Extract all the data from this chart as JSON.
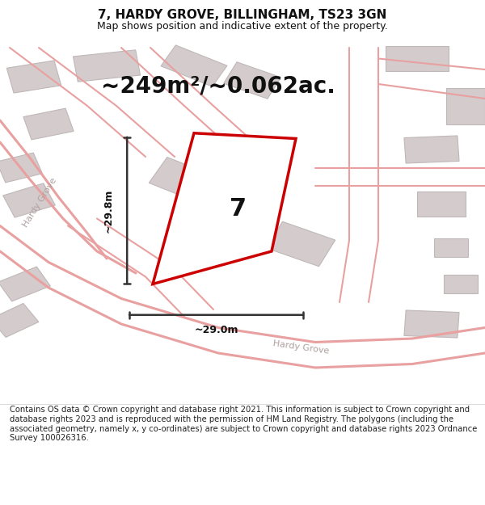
{
  "title": "7, HARDY GROVE, BILLINGHAM, TS23 3GN",
  "subtitle": "Map shows position and indicative extent of the property.",
  "area_text": "~249m²/~0.062ac.",
  "dim_vertical": "~29.8m",
  "dim_horizontal": "~29.0m",
  "plot_number": "7",
  "footer": "Contains OS data © Crown copyright and database right 2021. This information is subject to Crown copyright and database rights 2023 and is reproduced with the permission of HM Land Registry. The polygons (including the associated geometry, namely x, y co-ordinates) are subject to Crown copyright and database rights 2023 Ordnance Survey 100026316.",
  "bg_color": "#ffffff",
  "map_bg": "#f5eeee",
  "road_color": "#e8a0a0",
  "building_color": "#d4cccc",
  "building_ec": "#c0b8b8",
  "highlight_color": "#cc0000",
  "dim_color": "#333333",
  "title_fontsize": 11,
  "subtitle_fontsize": 9,
  "area_fontsize": 20,
  "plot_num_fontsize": 22,
  "footer_fontsize": 7.2
}
